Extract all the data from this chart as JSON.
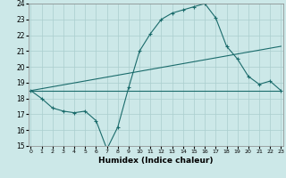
{
  "xlabel": "Humidex (Indice chaleur)",
  "bg_color": "#cce8e8",
  "line_color": "#1a6b6b",
  "grid_color": "#aacece",
  "xmin": 0,
  "xmax": 23,
  "ymin": 15,
  "ymax": 24,
  "line1_x": [
    0,
    1,
    2,
    3,
    4,
    5,
    6,
    7,
    8,
    9,
    10,
    11,
    12,
    13,
    14,
    15,
    16,
    17,
    18,
    19,
    20,
    21,
    22,
    23
  ],
  "line1_y": [
    18.5,
    18.0,
    17.4,
    17.2,
    17.1,
    17.2,
    16.6,
    14.8,
    16.2,
    18.7,
    21.0,
    22.1,
    23.0,
    23.4,
    23.6,
    23.8,
    24.0,
    23.1,
    21.3,
    20.5,
    19.4,
    18.9,
    19.1,
    18.5
  ],
  "line2_x": [
    0,
    23
  ],
  "line2_y": [
    18.5,
    21.3
  ],
  "line3_x": [
    0,
    23
  ],
  "line3_y": [
    18.5,
    18.5
  ]
}
